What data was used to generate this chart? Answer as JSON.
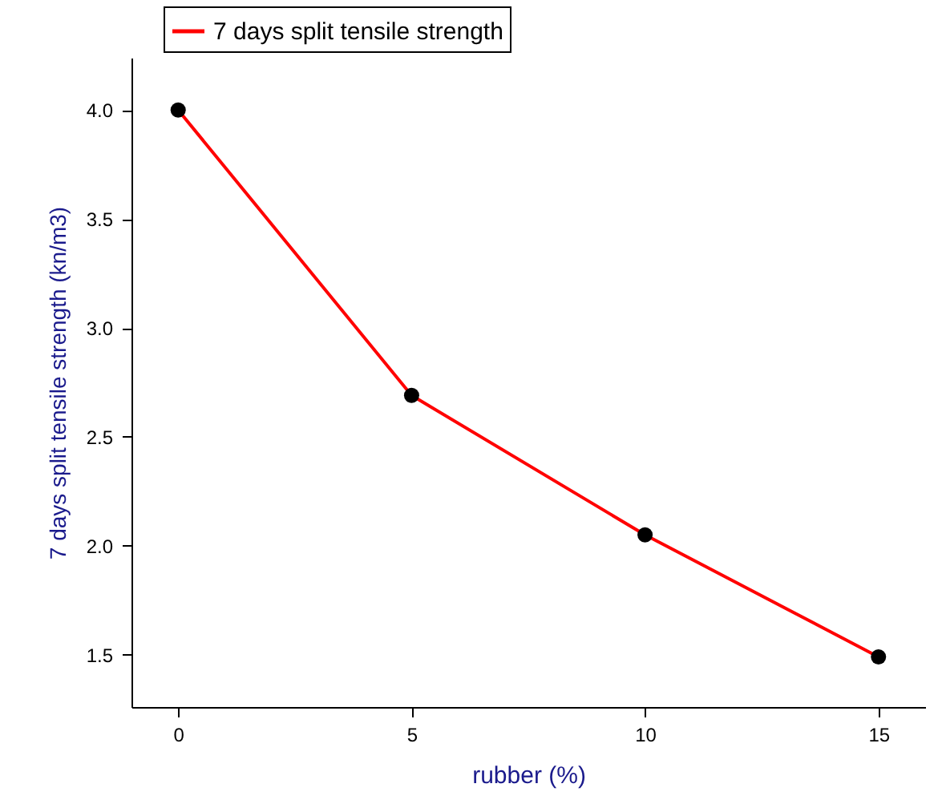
{
  "chart_data": {
    "type": "line",
    "xlabel": "rubber (%)",
    "ylabel": "7 days split tensile strength (kn/m3)",
    "x": [
      0,
      5,
      10,
      15
    ],
    "series": [
      {
        "name": "7 days split tensile strength",
        "color": "#ff0000",
        "values": [
          4.0,
          2.69,
          2.05,
          1.49
        ]
      }
    ],
    "xlim": [
      -1,
      16
    ],
    "xticks": [
      0,
      5,
      10,
      15
    ],
    "ylim": [
      1.26,
      4.24
    ],
    "yticks": [
      {
        "value": 1.5,
        "label": "1.5"
      },
      {
        "value": 2,
        "label": "2.0"
      },
      {
        "value": 2.5,
        "label": "2.5"
      },
      {
        "value": 3,
        "label": "3.0"
      },
      {
        "value": 3.5,
        "label": "3.5"
      },
      {
        "value": 4,
        "label": "4.0"
      }
    ],
    "legend": "top left",
    "marker": "circle",
    "line_style": "solid",
    "grid": false
  }
}
